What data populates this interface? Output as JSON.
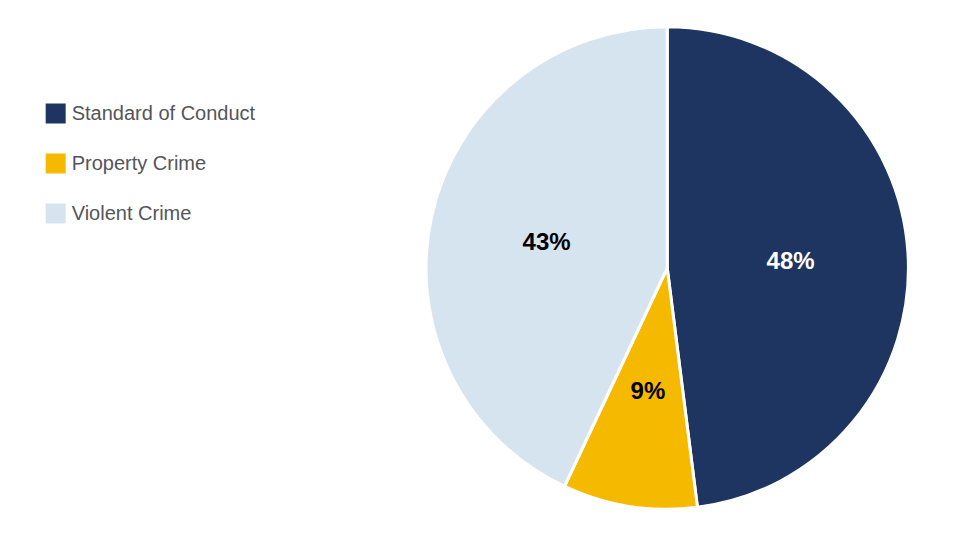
{
  "chart_data": {
    "type": "pie",
    "categories": [
      "Standard of Conduct",
      "Property Crime",
      "Violent Crime"
    ],
    "values": [
      48,
      9,
      43
    ],
    "value_labels": [
      "48%",
      "9%",
      "43%"
    ],
    "colors": [
      "#1e3461",
      "#f5b900",
      "#d6e4f0"
    ],
    "data_labels": true,
    "legend": "upper left"
  }
}
